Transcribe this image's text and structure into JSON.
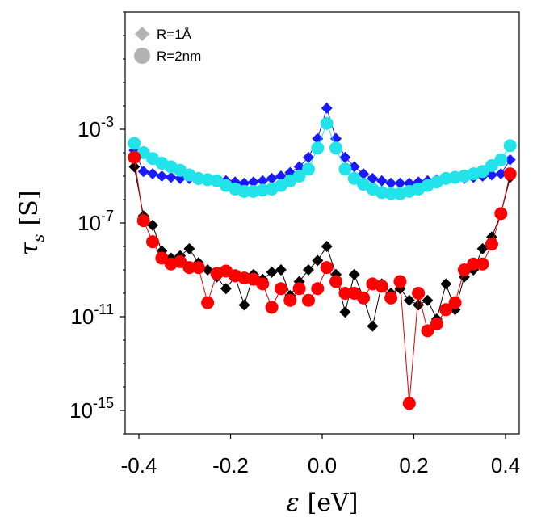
{
  "chart_data": {
    "type": "scatter",
    "yscale": "log",
    "xlim": [
      -0.43,
      0.43
    ],
    "ylim_exp": [
      -16,
      2
    ],
    "x_ticks": [
      -0.4,
      -0.2,
      0.0,
      0.2,
      0.4
    ],
    "x_tick_labels": [
      "-0.4",
      "-0.2",
      "0.0",
      "0.2",
      "0.4"
    ],
    "y_ticks_exp": [
      -15,
      -11,
      -7,
      -3
    ],
    "y_tick_labels": [
      {
        "base": "10",
        "exp": "-15"
      },
      {
        "base": "10",
        "exp": "-11"
      },
      {
        "base": "10",
        "exp": "-7"
      },
      {
        "base": "10",
        "exp": "-3"
      }
    ],
    "xlabel": {
      "symbol": "ε",
      "unit": "[eV]"
    },
    "ylabel": {
      "symbol": "τ",
      "subscript": "s",
      "unit": "[S]"
    },
    "legend": {
      "position": "top-left",
      "entries": [
        {
          "label": "R=1Å",
          "marker": "diamond",
          "color": "#b3b3b3"
        },
        {
          "label": "R=2nm",
          "marker": "circle",
          "color": "#b3b3b3"
        }
      ]
    },
    "series": [
      {
        "marker": "diamond",
        "color": "#1a1aff",
        "line": "#1a1aff",
        "size": 7,
        "points": [
          [
            -0.41,
            -3.9
          ],
          [
            -0.39,
            -4.8
          ],
          [
            -0.37,
            -4.9
          ],
          [
            -0.35,
            -5.0
          ],
          [
            -0.33,
            -5.05
          ],
          [
            -0.31,
            -5.1
          ],
          [
            -0.29,
            -5.1
          ],
          [
            -0.27,
            -5.15
          ],
          [
            -0.25,
            -5.15
          ],
          [
            -0.23,
            -5.2
          ],
          [
            -0.21,
            -5.2
          ],
          [
            -0.19,
            -5.25
          ],
          [
            -0.17,
            -5.3
          ],
          [
            -0.15,
            -5.25
          ],
          [
            -0.13,
            -5.2
          ],
          [
            -0.11,
            -5.1
          ],
          [
            -0.09,
            -5.0
          ],
          [
            -0.07,
            -4.85
          ],
          [
            -0.05,
            -4.6
          ],
          [
            -0.03,
            -4.2
          ],
          [
            -0.01,
            -3.4
          ],
          [
            0.01,
            -2.1
          ],
          [
            0.03,
            -3.4
          ],
          [
            0.05,
            -4.2
          ],
          [
            0.07,
            -4.6
          ],
          [
            0.09,
            -4.9
          ],
          [
            0.11,
            -5.1
          ],
          [
            0.13,
            -5.2
          ],
          [
            0.15,
            -5.3
          ],
          [
            0.17,
            -5.3
          ],
          [
            0.19,
            -5.3
          ],
          [
            0.21,
            -5.25
          ],
          [
            0.23,
            -5.2
          ],
          [
            0.25,
            -5.15
          ],
          [
            0.27,
            -5.1
          ],
          [
            0.29,
            -5.1
          ],
          [
            0.31,
            -5.1
          ],
          [
            0.33,
            -5.05
          ],
          [
            0.35,
            -5.0
          ],
          [
            0.37,
            -4.95
          ],
          [
            0.39,
            -4.9
          ],
          [
            0.41,
            -4.3
          ]
        ]
      },
      {
        "marker": "circle",
        "color": "#22e3ea",
        "line": "#22e3ea",
        "size": 8,
        "points": [
          [
            -0.41,
            -3.6
          ],
          [
            -0.39,
            -4.0
          ],
          [
            -0.37,
            -4.25
          ],
          [
            -0.35,
            -4.45
          ],
          [
            -0.33,
            -4.6
          ],
          [
            -0.31,
            -4.75
          ],
          [
            -0.29,
            -4.95
          ],
          [
            -0.27,
            -5.1
          ],
          [
            -0.25,
            -5.15
          ],
          [
            -0.23,
            -5.2
          ],
          [
            -0.21,
            -5.4
          ],
          [
            -0.19,
            -5.55
          ],
          [
            -0.17,
            -5.65
          ],
          [
            -0.15,
            -5.65
          ],
          [
            -0.13,
            -5.6
          ],
          [
            -0.11,
            -5.55
          ],
          [
            -0.09,
            -5.4
          ],
          [
            -0.07,
            -5.2
          ],
          [
            -0.05,
            -5.0
          ],
          [
            -0.03,
            -4.7
          ],
          [
            -0.01,
            -3.8
          ],
          [
            0.01,
            -2.75
          ],
          [
            0.03,
            -3.8
          ],
          [
            0.05,
            -4.7
          ],
          [
            0.07,
            -5.1
          ],
          [
            0.09,
            -5.35
          ],
          [
            0.11,
            -5.55
          ],
          [
            0.13,
            -5.7
          ],
          [
            0.15,
            -5.75
          ],
          [
            0.17,
            -5.75
          ],
          [
            0.19,
            -5.65
          ],
          [
            0.21,
            -5.55
          ],
          [
            0.23,
            -5.4
          ],
          [
            0.25,
            -5.25
          ],
          [
            0.27,
            -5.1
          ],
          [
            0.29,
            -5.05
          ],
          [
            0.31,
            -5.0
          ],
          [
            0.33,
            -4.9
          ],
          [
            0.35,
            -4.8
          ],
          [
            0.37,
            -4.55
          ],
          [
            0.39,
            -4.3
          ],
          [
            0.41,
            -3.7
          ]
        ]
      },
      {
        "marker": "diamond",
        "color": "#000000",
        "line": "#000000",
        "size": 7,
        "points": [
          [
            -0.41,
            -4.6
          ],
          [
            -0.39,
            -6.7
          ],
          [
            -0.37,
            -7.1
          ],
          [
            -0.35,
            -8.2
          ],
          [
            -0.33,
            -8.5
          ],
          [
            -0.31,
            -8.4
          ],
          [
            -0.29,
            -8.1
          ],
          [
            -0.27,
            -8.7
          ],
          [
            -0.25,
            -9.0
          ],
          [
            -0.23,
            -9.3
          ],
          [
            -0.21,
            -9.8
          ],
          [
            -0.19,
            -9.3
          ],
          [
            -0.17,
            -10.5
          ],
          [
            -0.15,
            -9.2
          ],
          [
            -0.13,
            -9.4
          ],
          [
            -0.11,
            -9.1
          ],
          [
            -0.09,
            -9.0
          ],
          [
            -0.07,
            -10.1
          ],
          [
            -0.05,
            -9.5
          ],
          [
            -0.03,
            -9.0
          ],
          [
            -0.01,
            -8.6
          ],
          [
            0.01,
            -8.0
          ],
          [
            0.03,
            -9.2
          ],
          [
            0.05,
            -10.8
          ],
          [
            0.07,
            -9.2
          ],
          [
            0.09,
            -10.2
          ],
          [
            0.11,
            -11.4
          ],
          [
            0.13,
            -9.6
          ],
          [
            0.15,
            -10.0
          ],
          [
            0.17,
            -9.8
          ],
          [
            0.19,
            -10.3
          ],
          [
            0.21,
            -10.5
          ],
          [
            0.23,
            -10.3
          ],
          [
            0.25,
            -11.1
          ],
          [
            0.27,
            -9.6
          ],
          [
            0.29,
            -10.7
          ],
          [
            0.31,
            -9.3
          ],
          [
            0.33,
            -9.0
          ],
          [
            0.35,
            -8.1
          ],
          [
            0.37,
            -7.6
          ],
          [
            0.39,
            -6.6
          ],
          [
            0.41,
            -5.05
          ]
        ]
      },
      {
        "marker": "circle",
        "color": "#ff0000",
        "line": "#e00000",
        "size": 8,
        "points": [
          [
            -0.41,
            -4.2
          ],
          [
            -0.39,
            -6.9
          ],
          [
            -0.37,
            -7.8
          ],
          [
            -0.35,
            -8.5
          ],
          [
            -0.33,
            -8.75
          ],
          [
            -0.31,
            -8.65
          ],
          [
            -0.29,
            -8.9
          ],
          [
            -0.27,
            -8.9
          ],
          [
            -0.25,
            -10.4
          ],
          [
            -0.23,
            -9.15
          ],
          [
            -0.21,
            -9.05
          ],
          [
            -0.19,
            -9.25
          ],
          [
            -0.17,
            -9.35
          ],
          [
            -0.15,
            -9.4
          ],
          [
            -0.13,
            -9.6
          ],
          [
            -0.11,
            -10.6
          ],
          [
            -0.09,
            -9.8
          ],
          [
            -0.07,
            -10.3
          ],
          [
            -0.05,
            -9.8
          ],
          [
            -0.03,
            -10.3
          ],
          [
            -0.01,
            -9.8
          ],
          [
            0.01,
            -8.9
          ],
          [
            0.03,
            -9.5
          ],
          [
            0.05,
            -10.0
          ],
          [
            0.07,
            -10.0
          ],
          [
            0.09,
            -10.2
          ],
          [
            0.11,
            -9.6
          ],
          [
            0.13,
            -9.7
          ],
          [
            0.15,
            -10.2
          ],
          [
            0.17,
            -9.5
          ],
          [
            0.19,
            -14.7
          ],
          [
            0.21,
            -10.0
          ],
          [
            0.23,
            -11.6
          ],
          [
            0.25,
            -11.3
          ],
          [
            0.27,
            -10.7
          ],
          [
            0.29,
            -10.4
          ],
          [
            0.31,
            -9.0
          ],
          [
            0.33,
            -8.75
          ],
          [
            0.35,
            -8.75
          ],
          [
            0.37,
            -7.9
          ],
          [
            0.39,
            -6.6
          ],
          [
            0.41,
            -4.9
          ]
        ]
      }
    ]
  }
}
